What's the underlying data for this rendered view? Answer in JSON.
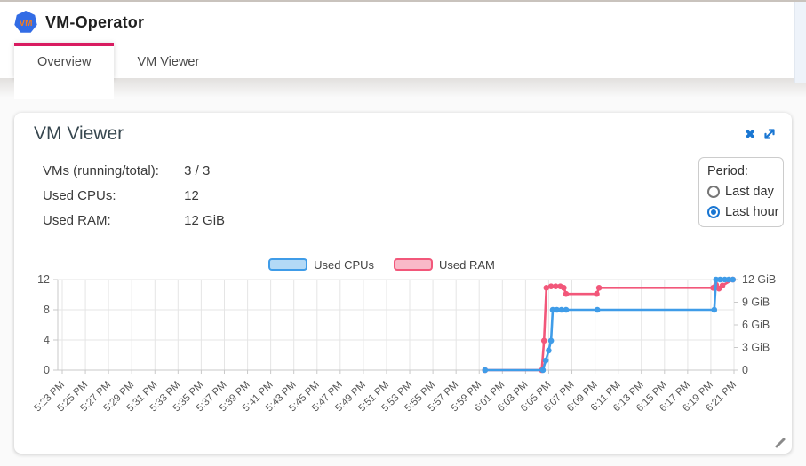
{
  "header": {
    "app_title": "VM-Operator",
    "logo_text": "VM"
  },
  "tabs": [
    {
      "label": "Overview",
      "active": true
    },
    {
      "label": "VM Viewer",
      "active": false
    }
  ],
  "card": {
    "title": "VM Viewer",
    "icons": {
      "close": "✖"
    },
    "stats": [
      {
        "label": "VMs (running/total):",
        "value": "3 / 3"
      },
      {
        "label": "Used CPUs:",
        "value": "12"
      },
      {
        "label": "Used RAM:",
        "value": "12 GiB"
      }
    ],
    "period": {
      "label": "Period:",
      "options": [
        {
          "label": "Last day",
          "selected": false
        },
        {
          "label": "Last hour",
          "selected": true
        }
      ]
    }
  },
  "chart_data": {
    "type": "line",
    "grid": true,
    "legend_position": "top-center",
    "x_axis": {
      "tick_labels": [
        "5:23 PM",
        "5:25 PM",
        "5:27 PM",
        "5:29 PM",
        "5:31 PM",
        "5:33 PM",
        "5:35 PM",
        "5:37 PM",
        "5:39 PM",
        "5:41 PM",
        "5:43 PM",
        "5:45 PM",
        "5:47 PM",
        "5:49 PM",
        "5:51 PM",
        "5:53 PM",
        "5:55 PM",
        "5:57 PM",
        "5:59 PM",
        "6:01 PM",
        "6:03 PM",
        "6:05 PM",
        "6:07 PM",
        "6:09 PM",
        "6:11 PM",
        "6:13 PM",
        "6:15 PM",
        "6:17 PM",
        "6:19 PM",
        "6:21 PM"
      ],
      "tick_interval_minutes": 2,
      "point_time_unit": "minutes_after_5:23_PM"
    },
    "left_axis": {
      "ticks": [
        0,
        4,
        8,
        12
      ],
      "range": [
        0,
        12
      ]
    },
    "right_axis": {
      "tick_values": [
        0,
        3,
        6,
        9,
        12
      ],
      "tick_labels": [
        "0",
        "3 GiB",
        "6 GiB",
        "9 GiB",
        "12 GiB"
      ],
      "range": [
        0,
        12
      ]
    },
    "series": [
      {
        "name": "Used CPUs",
        "axis": "left",
        "line_color": "#3f9ce8",
        "legend_fill": "#b3d9f6",
        "points": [
          [
            36.5,
            0
          ],
          [
            41.5,
            0
          ],
          [
            41.75,
            1.3
          ],
          [
            42.0,
            2.6
          ],
          [
            42.2,
            3.9
          ],
          [
            42.35,
            8
          ],
          [
            42.7,
            8
          ],
          [
            43.1,
            8
          ],
          [
            43.5,
            8
          ],
          [
            46.2,
            8
          ],
          [
            56.3,
            8
          ],
          [
            56.45,
            12
          ],
          [
            56.8,
            12
          ],
          [
            57.2,
            12
          ],
          [
            57.55,
            12
          ],
          [
            57.9,
            12
          ]
        ]
      },
      {
        "name": "Used RAM",
        "axis": "right",
        "line_color": "#f2577a",
        "legend_fill": "#f9b9c8",
        "points": [
          [
            36.5,
            0
          ],
          [
            41.4,
            0
          ],
          [
            41.6,
            3.9
          ],
          [
            41.8,
            10.9
          ],
          [
            42.2,
            11.1
          ],
          [
            42.6,
            11.1
          ],
          [
            43.0,
            11.1
          ],
          [
            43.3,
            10.9
          ],
          [
            43.5,
            10.1
          ],
          [
            46.15,
            10.1
          ],
          [
            46.35,
            10.9
          ],
          [
            56.2,
            10.9
          ],
          [
            56.45,
            11.3
          ],
          [
            56.7,
            10.8
          ],
          [
            57.0,
            11.2
          ],
          [
            57.9,
            12
          ]
        ]
      }
    ]
  },
  "colors": {
    "accent_blue": "#1976d2",
    "tab_indicator": "#d81b60",
    "logo_blue": "#326ce5",
    "logo_orange": "#f57c1f",
    "grid": "#e5e5e5",
    "axis": "#c9c9c9"
  }
}
